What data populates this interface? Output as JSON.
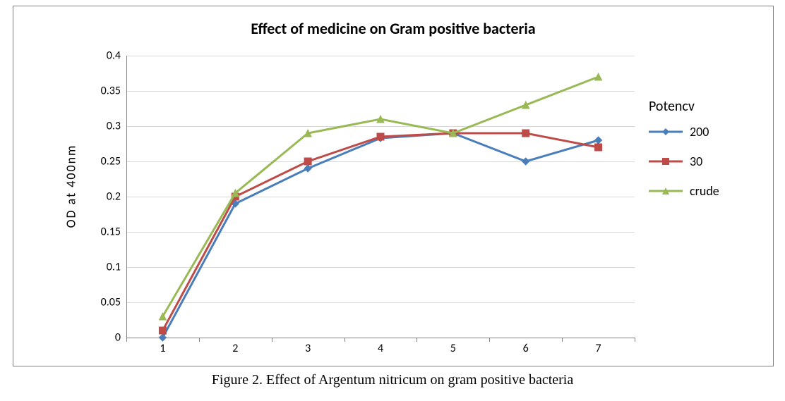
{
  "outer_border_color": "#7f7f7f",
  "background_color": "#ffffff",
  "title": "Effect of medicine on Gram positive bacteria",
  "title_fontsize": 22,
  "title_fontweight": "bold",
  "yaxis_label": "OD  at   400nm",
  "yaxis_label_fontsize": 18,
  "caption": "Figure 2. Effect of Argentum nitricum on gram positive bacteria",
  "caption_fontsize": 20,
  "chart": {
    "type": "line",
    "x_categories": [
      "1",
      "2",
      "3",
      "4",
      "5",
      "6",
      "7"
    ],
    "ylim": [
      0,
      0.4
    ],
    "ytick_step": 0.05,
    "ytick_labels": [
      "0",
      "0.05",
      "0.1",
      "0.15",
      "0.2",
      "0.25",
      "0.3",
      "0.35",
      "0.4"
    ],
    "grid": true,
    "grid_color": "#d9d9d9",
    "axis_color": "#808080",
    "tick_label_fontsize": 16,
    "line_width": 3,
    "marker_size": 10,
    "series": [
      {
        "name": "200",
        "color": "#4a7ebb",
        "marker": "diamond",
        "values": [
          0.0,
          0.19,
          0.24,
          0.283,
          0.29,
          0.25,
          0.28
        ]
      },
      {
        "name": "30",
        "color": "#be4b48",
        "marker": "square",
        "values": [
          0.01,
          0.2,
          0.25,
          0.285,
          0.29,
          0.29,
          0.27
        ]
      },
      {
        "name": "crude",
        "color": "#98b954",
        "marker": "triangle",
        "values": [
          0.03,
          0.205,
          0.29,
          0.31,
          0.29,
          0.33,
          0.37
        ]
      }
    ],
    "legend": {
      "title": "Potencv",
      "title_fontsize": 20,
      "item_fontsize": 18
    }
  }
}
